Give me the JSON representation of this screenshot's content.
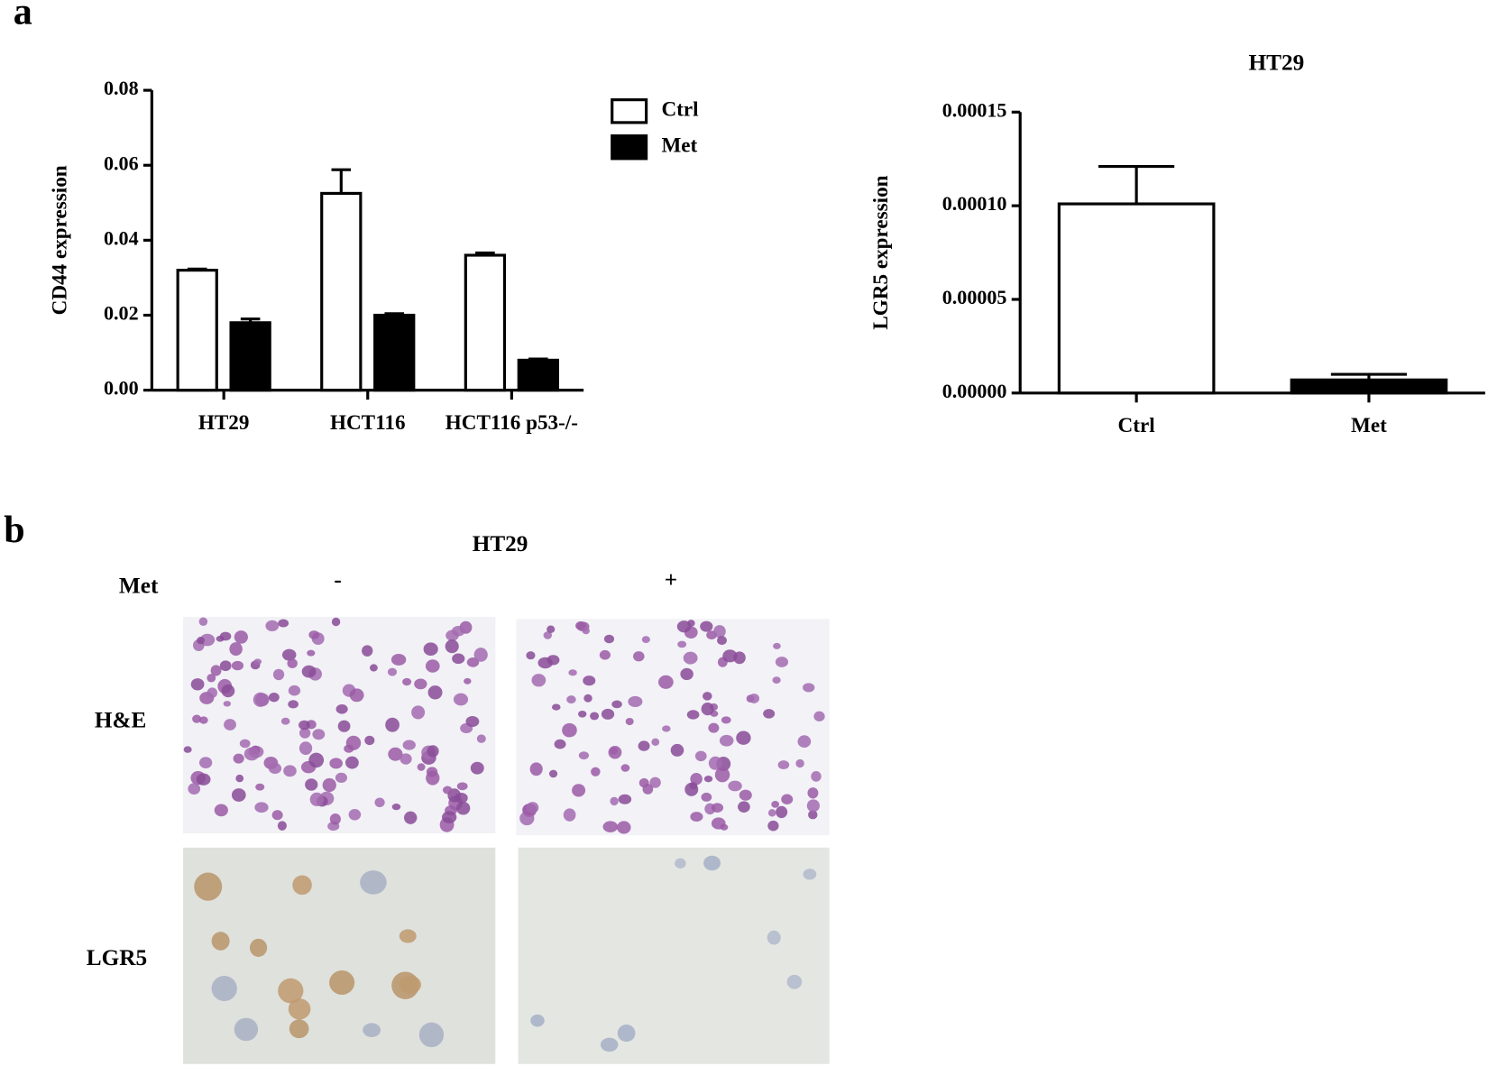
{
  "panel_labels": [
    "a",
    "b"
  ],
  "chart_data": [
    {
      "type": "bar",
      "y_label": "CD44 expression",
      "categories": [
        "HT29",
        "HCT116",
        "HCT116 p53-/-"
      ],
      "series": [
        {
          "name": "Ctrl",
          "color": "#ffffff",
          "values": [
            0.032,
            0.0525,
            0.036
          ],
          "errors": [
            0.0003,
            0.0063,
            0.0006
          ]
        },
        {
          "name": "Met",
          "color": "#000000",
          "values": [
            0.018,
            0.02,
            0.008
          ],
          "errors": [
            0.001,
            0.0004,
            0.0003
          ]
        }
      ],
      "ylim": [
        0,
        0.08
      ],
      "yticks": [
        {
          "value": 0,
          "label": "0.00"
        },
        0.02,
        0.04,
        0.06,
        0.08
      ],
      "legend": "right"
    },
    {
      "type": "bar",
      "title": "HT29",
      "y_label": "LGR5 expression",
      "categories": [
        "Ctrl",
        "Met"
      ],
      "values": [
        0.000101,
        7e-06
      ],
      "errors": [
        2e-05,
        3e-06
      ],
      "colors": [
        "#ffffff",
        "#000000"
      ],
      "ylim": [
        0,
        0.00015
      ],
      "yticks": [
        {
          "value": 0,
          "label": "0.00000"
        },
        {
          "value": 5e-05,
          "label": "0.00005"
        },
        {
          "value": 0.0001,
          "label": "0.00010"
        },
        {
          "value": 0.00015,
          "label": "0.00015"
        }
      ]
    }
  ],
  "panel_b": {
    "title": "HT29",
    "row_header": "Met",
    "columns": [
      "-",
      "+"
    ],
    "rows": [
      "H&E",
      "LGR5"
    ]
  }
}
